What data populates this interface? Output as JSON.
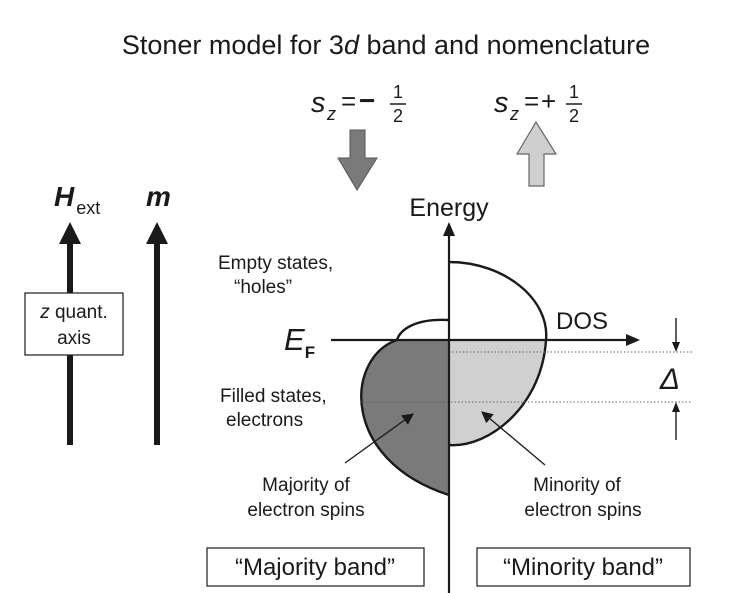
{
  "title": {
    "pre": "Stoner model for 3",
    "italic": "d",
    "post": " band and nomenclature"
  },
  "spin_down": {
    "s": "s",
    "sub": "z",
    "eq": "=",
    "sign": "−",
    "num": "1",
    "den": "2"
  },
  "spin_up": {
    "s": "s",
    "sub": "z",
    "eq": "=",
    "sign": "+",
    "num": "1",
    "den": "2"
  },
  "hext": {
    "main": "H",
    "sub": "ext"
  },
  "m_label": "m",
  "quant_axis": {
    "italic": "z",
    "line1_rest": " quant.",
    "line2": "axis"
  },
  "energy_label": "Energy",
  "dos_label": "DOS",
  "ef": {
    "main": "E",
    "sub": "F"
  },
  "delta": "Δ",
  "empty_states": {
    "line1": "Empty states,",
    "line2": "“holes”"
  },
  "filled_states": {
    "line1": "Filled states,",
    "line2": "electrons"
  },
  "majority_spins": {
    "line1": "Majority of",
    "line2": "electron spins"
  },
  "minority_spins": {
    "line1": "Minority of",
    "line2": "electron spins"
  },
  "majority_band": "“Majority band”",
  "minority_band": "“Minority band”",
  "colors": {
    "filled_majority": "#7a7a7a",
    "filled_minority": "#d0d0d0",
    "arrow_down": "#7a7a7a",
    "arrow_up": "#cfcfcf",
    "ink": "#1a1a1a"
  }
}
